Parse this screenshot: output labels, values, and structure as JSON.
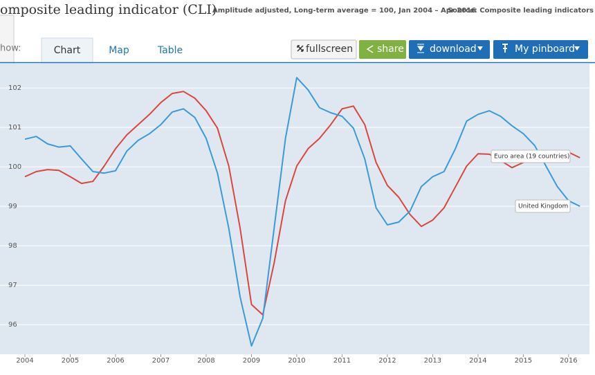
{
  "header": {
    "title": "omposite leading indicator (CLI)",
    "subtitle": "Amplitude adjusted, Long-term average = 100, Jan 2004 – Apr 2016",
    "source": "Source: Composite leading indicators"
  },
  "tabs": {
    "prefix": "how:",
    "items": [
      "Chart",
      "Map",
      "Table"
    ],
    "active": 0
  },
  "buttons": {
    "fullscreen": "fullscreen",
    "share": "share",
    "download": "download",
    "pinboard": "My pinboard"
  },
  "chart_data": {
    "type": "line",
    "x": [
      2004.0,
      2004.25,
      2004.5,
      2004.75,
      2005.0,
      2005.25,
      2005.5,
      2005.75,
      2006.0,
      2006.25,
      2006.5,
      2006.75,
      2007.0,
      2007.25,
      2007.5,
      2007.75,
      2008.0,
      2008.25,
      2008.5,
      2008.75,
      2009.0,
      2009.25,
      2009.5,
      2009.75,
      2010.0,
      2010.25,
      2010.5,
      2010.75,
      2011.0,
      2011.25,
      2011.5,
      2011.75,
      2012.0,
      2012.25,
      2012.5,
      2012.75,
      2013.0,
      2013.25,
      2013.5,
      2013.75,
      2014.0,
      2014.25,
      2014.5,
      2014.75,
      2015.0,
      2015.25,
      2015.5,
      2015.75,
      2016.0,
      2016.25
    ],
    "series": [
      {
        "name": "Euro area (19 countries)",
        "color": "#d9463e",
        "values": [
          99.75,
          99.88,
          99.93,
          99.91,
          99.75,
          99.58,
          99.63,
          100.02,
          100.46,
          100.81,
          101.07,
          101.33,
          101.63,
          101.86,
          101.91,
          101.74,
          101.42,
          100.98,
          100.02,
          98.44,
          96.51,
          96.25,
          97.56,
          99.14,
          100.02,
          100.46,
          100.72,
          101.07,
          101.47,
          101.54,
          101.07,
          100.11,
          99.53,
          99.23,
          98.79,
          98.49,
          98.65,
          98.96,
          99.49,
          100.02,
          100.33,
          100.32,
          100.16,
          99.98,
          100.11,
          100.33,
          100.4,
          100.37,
          100.37,
          100.23
        ]
      },
      {
        "name": "United Kingdom",
        "color": "#3a9ad9",
        "values": [
          100.7,
          100.77,
          100.58,
          100.5,
          100.53,
          100.2,
          99.88,
          99.84,
          99.9,
          100.4,
          100.67,
          100.84,
          101.07,
          101.39,
          101.47,
          101.25,
          100.72,
          99.84,
          98.44,
          96.7,
          95.46,
          96.16,
          98.44,
          100.72,
          102.26,
          101.95,
          101.5,
          101.37,
          101.28,
          100.98,
          100.2,
          98.96,
          98.53,
          98.6,
          98.88,
          99.5,
          99.75,
          99.88,
          100.46,
          101.16,
          101.33,
          101.42,
          101.28,
          101.04,
          100.84,
          100.54,
          100.02,
          99.5,
          99.14,
          99.0
        ]
      }
    ],
    "xlim": [
      2003.45,
      2016.46
    ],
    "ylim": [
      95.25,
      102.65
    ],
    "xticks": [
      2004,
      2005,
      2006,
      2007,
      2008,
      2009,
      2010,
      2011,
      2012,
      2013,
      2014,
      2015,
      2016
    ],
    "yticks": [
      96,
      97,
      98,
      99,
      100,
      101,
      102
    ],
    "grid": true
  }
}
